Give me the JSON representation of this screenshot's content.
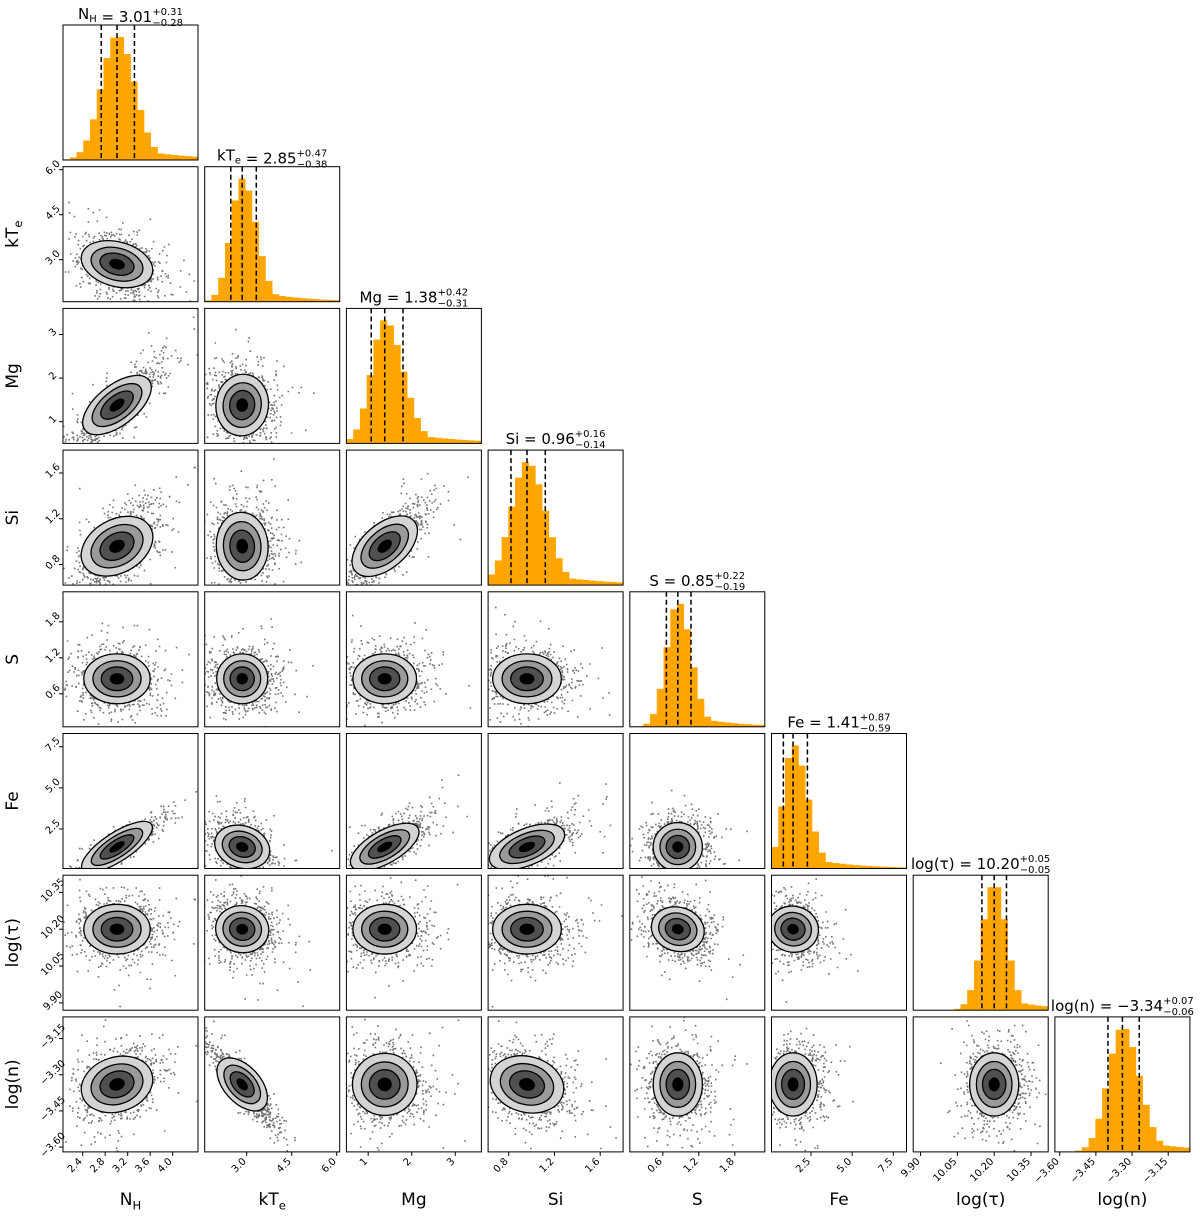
{
  "chart_data": {
    "type": "corner",
    "histogram_color": "#ffa500",
    "contour_colors": [
      "#000000",
      "#505050",
      "#9a9a9a",
      "#d4d4d4"
    ],
    "quantile_line_style": "dashed",
    "parameters": [
      {
        "key": "NH",
        "label": "N",
        "sub": "H",
        "paren": "",
        "title_lhs": "N",
        "title_lhs_sub": "H",
        "median": "3.01",
        "plus": "+0.31",
        "minus": "−0.28",
        "median_value": 3.01,
        "err_plus": 0.31,
        "err_minus": 0.28,
        "range": [
          2.05,
          4.45
        ],
        "ticks": [
          "2.4",
          "2.8",
          "3.2",
          "3.6",
          "4.0"
        ],
        "tick_values": [
          2.4,
          2.8,
          3.2,
          3.6,
          4.0
        ]
      },
      {
        "key": "kTe",
        "label": "kT",
        "sub": "e",
        "paren": "",
        "title_lhs": "kT",
        "title_lhs_sub": "e",
        "median": "2.85",
        "plus": "+0.47",
        "minus": "−0.38",
        "median_value": 2.85,
        "err_plus": 0.47,
        "err_minus": 0.38,
        "range": [
          1.6,
          6.1
        ],
        "ticks": [
          "3.0",
          "4.5",
          "6.0"
        ],
        "tick_values": [
          3.0,
          4.5,
          6.0
        ]
      },
      {
        "key": "Mg",
        "label": "Mg",
        "sub": "",
        "paren": "",
        "title_lhs": "Mg",
        "title_lhs_sub": "",
        "median": "1.38",
        "plus": "+0.42",
        "minus": "−0.31",
        "median_value": 1.38,
        "err_plus": 0.42,
        "err_minus": 0.31,
        "range": [
          0.5,
          3.6
        ],
        "ticks": [
          "1",
          "2",
          "3"
        ],
        "tick_values": [
          1,
          2,
          3
        ]
      },
      {
        "key": "Si",
        "label": "Si",
        "sub": "",
        "paren": "",
        "title_lhs": "Si",
        "title_lhs_sub": "",
        "median": "0.96",
        "plus": "+0.16",
        "minus": "−0.14",
        "median_value": 0.96,
        "err_plus": 0.16,
        "err_minus": 0.14,
        "range": [
          0.62,
          1.8
        ],
        "ticks": [
          "0.8",
          "1.2",
          "1.6"
        ],
        "tick_values": [
          0.8,
          1.2,
          1.6
        ]
      },
      {
        "key": "S",
        "label": "S",
        "sub": "",
        "paren": "",
        "title_lhs": "S",
        "title_lhs_sub": "",
        "median": "0.85",
        "plus": "+0.22",
        "minus": "−0.19",
        "median_value": 0.85,
        "err_plus": 0.22,
        "err_minus": 0.19,
        "range": [
          0.05,
          2.3
        ],
        "ticks": [
          "0.6",
          "1.2",
          "1.8"
        ],
        "tick_values": [
          0.6,
          1.2,
          1.8
        ]
      },
      {
        "key": "Fe",
        "label": "Fe",
        "sub": "",
        "paren": "",
        "title_lhs": "Fe",
        "title_lhs_sub": "",
        "median": "1.41",
        "plus": "+0.87",
        "minus": "−0.59",
        "median_value": 1.41,
        "err_plus": 0.87,
        "err_minus": 0.59,
        "range": [
          0.1,
          8.3
        ],
        "ticks": [
          "2.5",
          "5.0",
          "7.5"
        ],
        "tick_values": [
          2.5,
          5.0,
          7.5
        ]
      },
      {
        "key": "logtau",
        "label": "log",
        "sub": "",
        "paren": "τ",
        "title_lhs": "log",
        "title_lhs_sub": "",
        "median": "10.20",
        "plus": "+0.05",
        "minus": "−0.05",
        "median_value": 10.2,
        "err_plus": 0.05,
        "err_minus": 0.05,
        "range": [
          9.87,
          10.42
        ],
        "ticks": [
          "9.90",
          "10.05",
          "10.20",
          "10.35"
        ],
        "tick_values": [
          9.9,
          10.05,
          10.2,
          10.35
        ]
      },
      {
        "key": "logn",
        "label": "log",
        "sub": "",
        "paren": "n",
        "title_lhs": "log",
        "title_lhs_sub": "",
        "median": "−3.34",
        "plus": "+0.07",
        "minus": "−0.06",
        "median_value": -3.34,
        "err_plus": 0.07,
        "err_minus": 0.06,
        "range": [
          -3.62,
          -3.06
        ],
        "ticks": [
          "−3.60",
          "−3.45",
          "−3.30",
          "−3.15"
        ],
        "tick_values": [
          -3.6,
          -3.45,
          -3.3,
          -3.15
        ]
      }
    ],
    "correlations": [
      [
        1,
        -0.35,
        0.82,
        0.55,
        0.0,
        0.9,
        0.0,
        0.35
      ],
      [
        -0.35,
        1,
        -0.1,
        0.05,
        0.0,
        -0.35,
        -0.15,
        -0.9
      ],
      [
        0.82,
        -0.1,
        1,
        0.8,
        0.0,
        0.75,
        0.0,
        0.05
      ],
      [
        0.55,
        0.05,
        0.8,
        1,
        0.0,
        0.6,
        0.0,
        -0.3
      ],
      [
        0.0,
        0.0,
        0.0,
        0.0,
        1,
        0.0,
        -0.3,
        0.0
      ],
      [
        0.9,
        -0.35,
        0.75,
        0.6,
        0.0,
        1,
        -0.2,
        0.0
      ],
      [
        0.0,
        -0.15,
        0.0,
        0.0,
        -0.3,
        -0.2,
        1,
        0.0
      ],
      [
        0.35,
        -0.9,
        0.05,
        -0.3,
        0.0,
        0.0,
        0.0,
        1
      ]
    ]
  }
}
